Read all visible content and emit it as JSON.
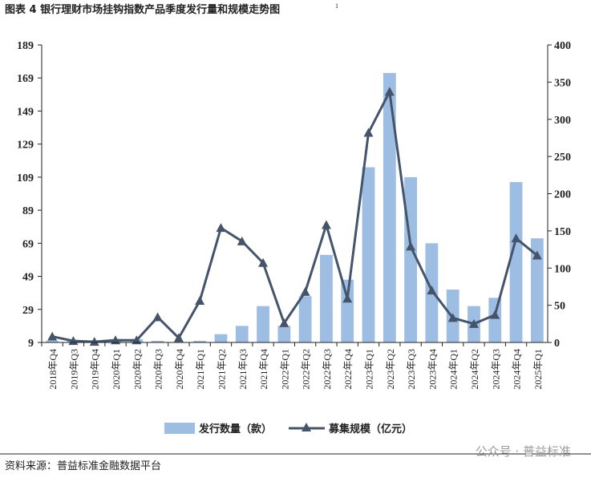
{
  "title": "图表 4 银行理财市场挂钩指数产品季度发行量和规模走势图",
  "title_note": "1",
  "source": "资料来源：普益标准金融数据平台",
  "watermark": "公众号 · 普益标准",
  "chart_data": {
    "type": "bar-line",
    "categories": [
      "2018年Q4",
      "2019年Q3",
      "2019年Q4",
      "2020年Q1",
      "2020年Q2",
      "2020年Q3",
      "2020年Q4",
      "2021年Q1",
      "2021年Q2",
      "2021年Q3",
      "2021年Q4",
      "2022年Q1",
      "2022年Q2",
      "2022年Q3",
      "2022年Q4",
      "2023年Q1",
      "2023年Q2",
      "2023年Q3",
      "2023年Q4",
      "2024年Q1",
      "2024年Q2",
      "2024年Q3",
      "2024年Q4",
      "2025年Q1"
    ],
    "series": [
      {
        "name": "发行数量（款）",
        "type": "bar",
        "color": "#9dbde2",
        "values": [
          10,
          10,
          10,
          11,
          11,
          10,
          9,
          10,
          14,
          19,
          31,
          19,
          37,
          62,
          47,
          115,
          172,
          109,
          69,
          41,
          31,
          36,
          106,
          72
        ]
      },
      {
        "name": "募集规模（亿元）",
        "type": "line",
        "axis": "y2",
        "color": "#44546a",
        "values": [
          8,
          2,
          1,
          3,
          3,
          34,
          6,
          56,
          154,
          136,
          107,
          26,
          68,
          158,
          59,
          282,
          337,
          129,
          70,
          33,
          25,
          37,
          140,
          117
        ]
      }
    ],
    "ylim": [
      9,
      189
    ],
    "yticks": [
      9,
      29,
      49,
      69,
      89,
      109,
      129,
      149,
      169,
      189
    ],
    "y2lim": [
      0,
      400
    ],
    "y2ticks": [
      0,
      50,
      100,
      150,
      200,
      250,
      300,
      350,
      400
    ]
  }
}
